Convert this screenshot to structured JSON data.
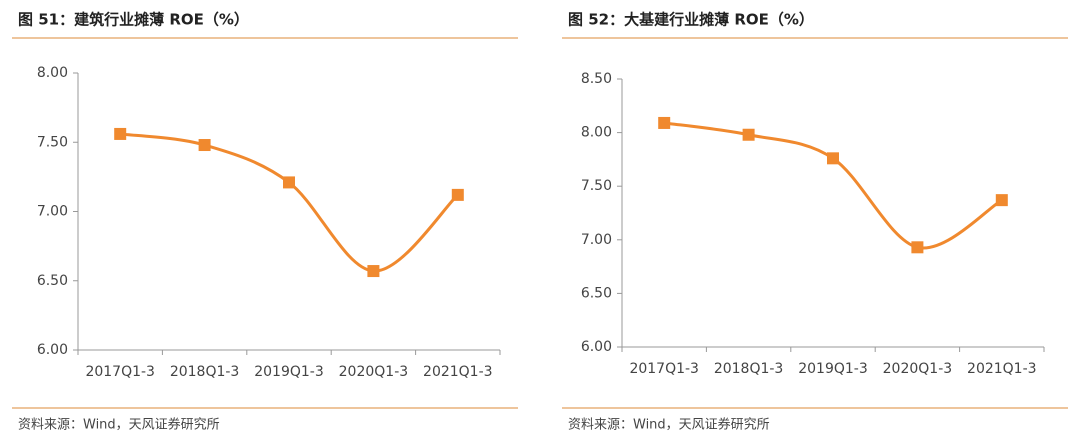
{
  "chart_data": [
    {
      "type": "line",
      "title": "图 51：建筑行业摊薄 ROE（%）",
      "source": "资料来源：Wind，天风证券研究所",
      "categories": [
        "2017Q1-3",
        "2018Q1-3",
        "2019Q1-3",
        "2020Q1-3",
        "2021Q1-3"
      ],
      "series": [
        {
          "color": "#f0892e",
          "values": [
            7.56,
            7.48,
            7.21,
            6.57,
            7.12
          ]
        }
      ],
      "ylim": [
        6,
        8
      ],
      "yticks": [
        {
          "value": 6,
          "label": "6.00"
        },
        {
          "value": 6.5,
          "label": "6.50"
        },
        {
          "value": 7,
          "label": "7.00"
        },
        {
          "value": 7.5,
          "label": "7.50"
        },
        {
          "value": 8,
          "label": "8.00"
        }
      ],
      "grid": false
    },
    {
      "type": "line",
      "title": "图 52：大基建行业摊薄 ROE（%）",
      "source": "资料来源：Wind，天风证券研究所",
      "categories": [
        "2017Q1-3",
        "2018Q1-3",
        "2019Q1-3",
        "2020Q1-3",
        "2021Q1-3"
      ],
      "series": [
        {
          "color": "#f0892e",
          "values": [
            8.09,
            7.98,
            7.76,
            6.93,
            7.37
          ]
        }
      ],
      "ylim": [
        6,
        8.5
      ],
      "yticks": [
        {
          "value": 6,
          "label": "6.00"
        },
        {
          "value": 6.5,
          "label": "6.50"
        },
        {
          "value": 7,
          "label": "7.00"
        },
        {
          "value": 7.5,
          "label": "7.50"
        },
        {
          "value": 8,
          "label": "8.00"
        },
        {
          "value": 8.5,
          "label": "8.50"
        }
      ],
      "grid": false
    }
  ]
}
